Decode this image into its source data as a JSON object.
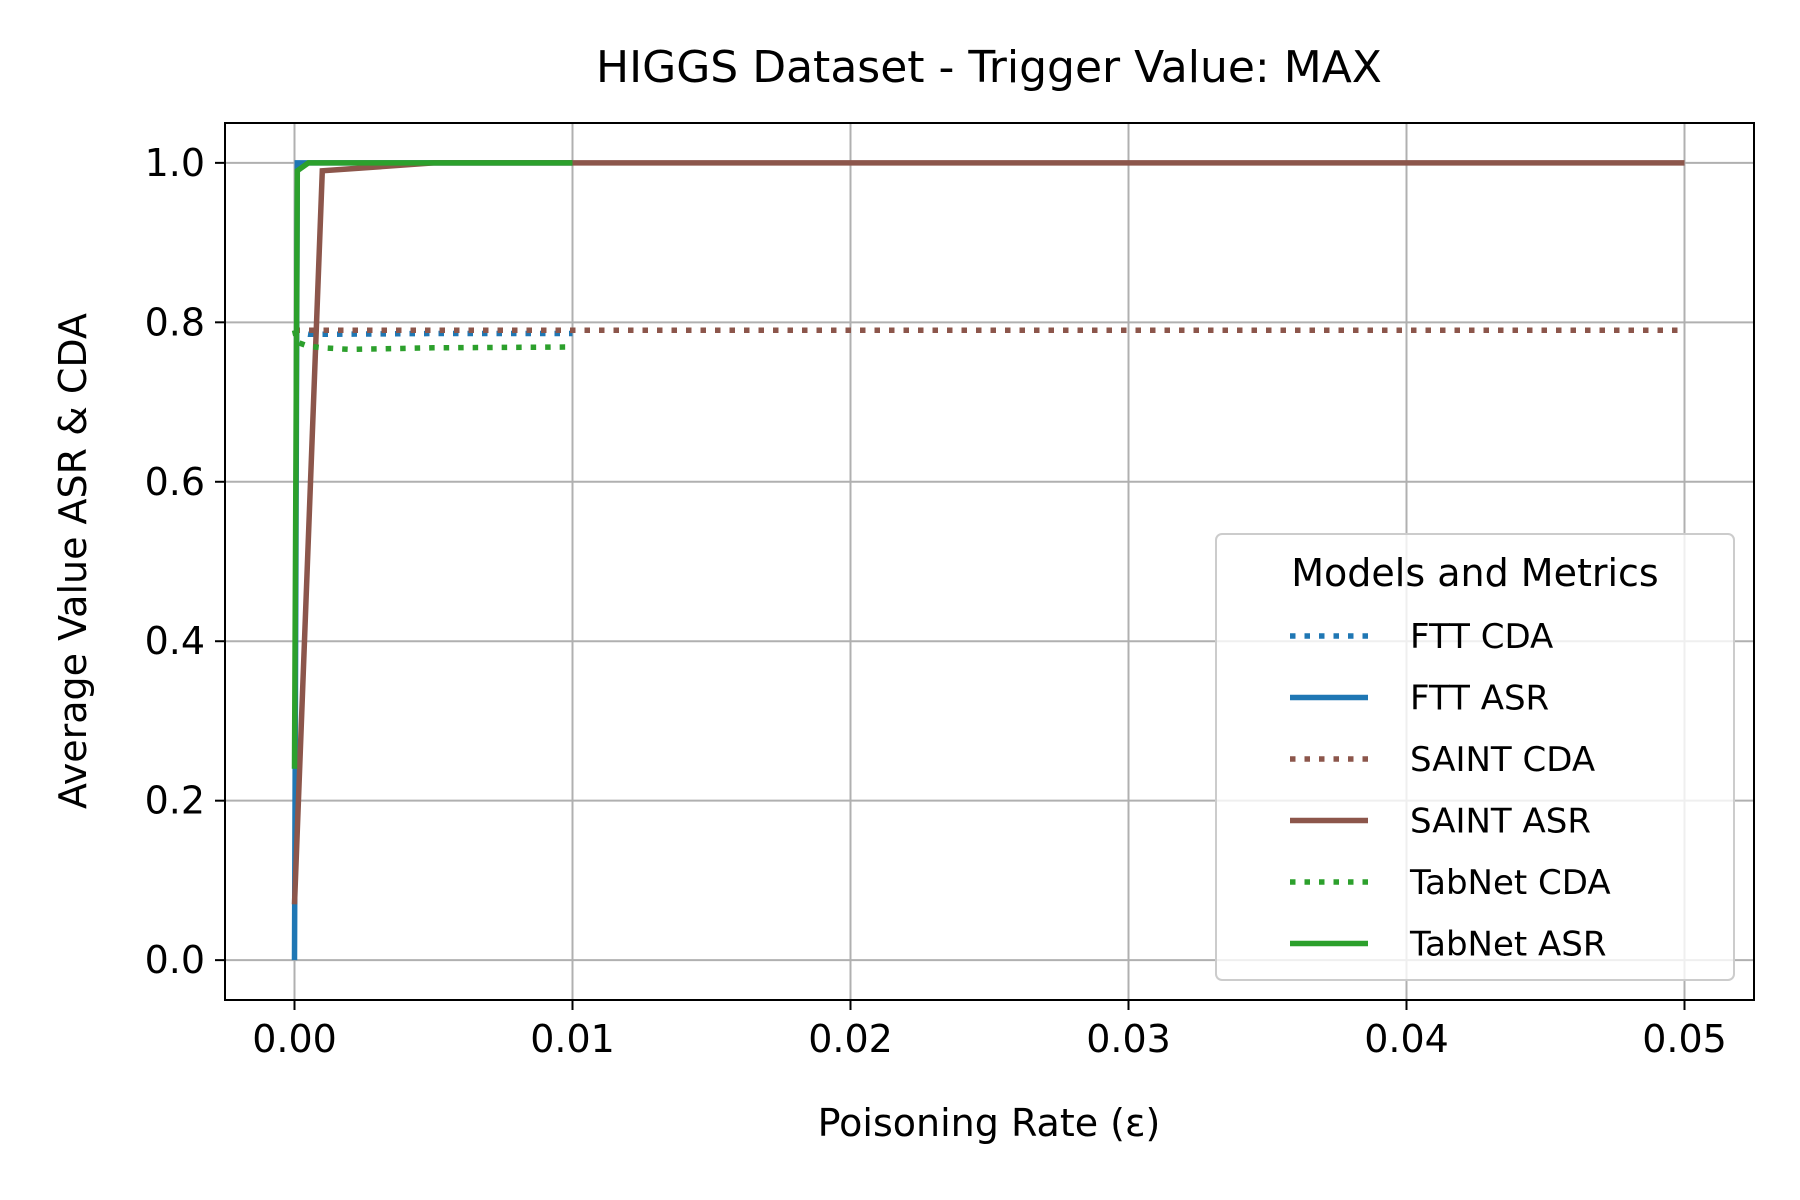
{
  "chart_data": {
    "type": "line",
    "title": "HIGGS Dataset - Trigger Value: MAX",
    "xlabel": "Poisoning Rate (ε)",
    "ylabel": "Average Value ASR & CDA",
    "xlim": [
      -0.0025,
      0.0525
    ],
    "ylim": [
      -0.05,
      1.05
    ],
    "xticks": [
      0.0,
      0.01,
      0.02,
      0.03,
      0.04,
      0.05
    ],
    "xtick_labels": [
      "0.00",
      "0.01",
      "0.02",
      "0.03",
      "0.04",
      "0.05"
    ],
    "yticks": [
      0.0,
      0.2,
      0.4,
      0.6,
      0.8,
      1.0
    ],
    "ytick_labels": [
      "0.0",
      "0.2",
      "0.4",
      "0.6",
      "0.8",
      "1.0"
    ],
    "grid": true,
    "legend": {
      "title": "Models and Metrics",
      "position": "lower right"
    },
    "series": [
      {
        "name": "FTT CDA",
        "color": "#1f77b4",
        "style": "dotted",
        "x": [
          0,
          0.0001,
          0.0005,
          0.001,
          0.005,
          0.01
        ],
        "y": [
          0.79,
          0.787,
          0.785,
          0.785,
          0.786,
          0.786
        ]
      },
      {
        "name": "FTT ASR",
        "color": "#1f77b4",
        "style": "solid",
        "x": [
          0,
          0.0001,
          0.0005,
          0.001,
          0.005,
          0.01
        ],
        "y": [
          0.0,
          1.0,
          1.0,
          1.0,
          1.0,
          1.0
        ]
      },
      {
        "name": "SAINT CDA",
        "color": "#8c564b",
        "style": "dotted",
        "x": [
          0,
          0.0001,
          0.0005,
          0.001,
          0.005,
          0.01,
          0.05
        ],
        "y": [
          0.79,
          0.79,
          0.79,
          0.79,
          0.79,
          0.79,
          0.79
        ]
      },
      {
        "name": "SAINT ASR",
        "color": "#8c564b",
        "style": "solid",
        "x": [
          0,
          0.001,
          0.005,
          0.01,
          0.05
        ],
        "y": [
          0.07,
          0.99,
          1.0,
          1.0,
          1.0
        ]
      },
      {
        "name": "TabNet CDA",
        "color": "#2ca02c",
        "style": "dotted",
        "x": [
          0,
          0.0001,
          0.0005,
          0.001,
          0.002,
          0.005,
          0.01
        ],
        "y": [
          0.79,
          0.775,
          0.77,
          0.768,
          0.766,
          0.768,
          0.769
        ]
      },
      {
        "name": "TabNet ASR",
        "color": "#2ca02c",
        "style": "solid",
        "x": [
          0,
          0.0001,
          0.0005,
          0.001,
          0.005,
          0.01
        ],
        "y": [
          0.24,
          0.99,
          1.0,
          1.0,
          1.0,
          1.0
        ]
      }
    ]
  }
}
